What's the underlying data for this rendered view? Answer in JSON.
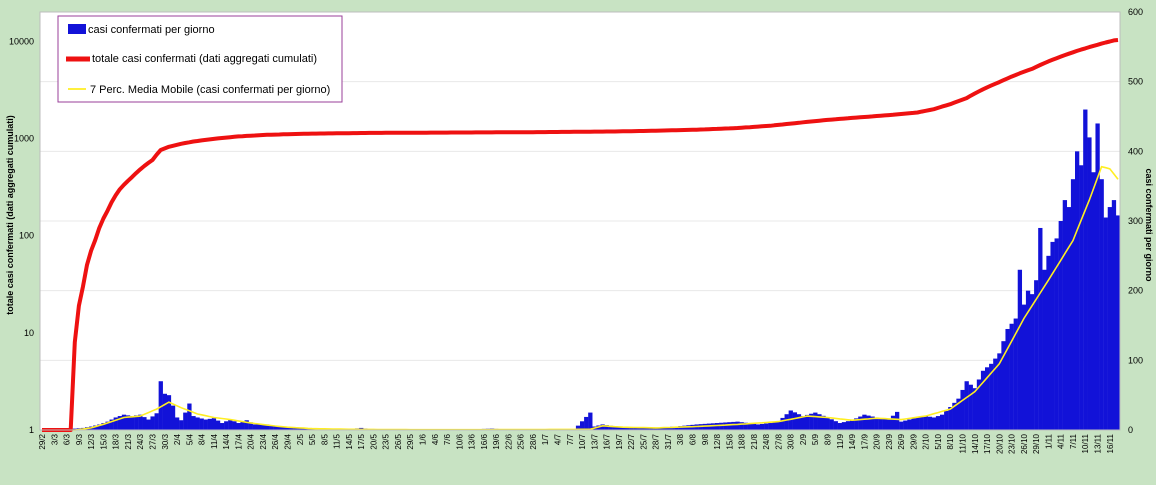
{
  "chart_data": {
    "type": "bar",
    "date_start": "29/2",
    "y_left": {
      "label": "totale casi confermati (dati aggregati cumulati)",
      "scale": "log",
      "range": [
        1,
        20000
      ],
      "ticks": [
        "1",
        "10",
        "100",
        "1000",
        "10000"
      ]
    },
    "y_right": {
      "label": "casi confermati per giorno",
      "range": [
        0,
        600
      ],
      "ticks": [
        "0",
        "100",
        "200",
        "300",
        "400",
        "500",
        "600"
      ]
    },
    "legend": {
      "placement": "top-left",
      "items": [
        {
          "name": "casi confermati per giorno",
          "color": "#1212d8",
          "kind": "bar"
        },
        {
          "name": "totale casi confermati (dati aggregati cumulati)",
          "color": "#ee1111",
          "kind": "line-thick"
        },
        {
          "name": "7 Perc. Media Mobile (casi confermati per giorno)",
          "color": "#ffee22",
          "kind": "line"
        }
      ]
    },
    "daily_keypoints": [
      [
        0,
        0
      ],
      [
        7,
        0
      ],
      [
        8,
        2
      ],
      [
        10,
        3
      ],
      [
        12,
        5
      ],
      [
        14,
        8
      ],
      [
        16,
        12
      ],
      [
        18,
        18
      ],
      [
        20,
        22
      ],
      [
        22,
        20
      ],
      [
        24,
        22
      ],
      [
        26,
        15
      ],
      [
        28,
        24
      ],
      [
        29,
        70
      ],
      [
        30,
        52
      ],
      [
        31,
        50
      ],
      [
        32,
        35
      ],
      [
        33,
        18
      ],
      [
        34,
        14
      ],
      [
        35,
        25
      ],
      [
        36,
        38
      ],
      [
        37,
        20
      ],
      [
        38,
        18
      ],
      [
        40,
        15
      ],
      [
        42,
        17
      ],
      [
        44,
        10
      ],
      [
        46,
        15
      ],
      [
        48,
        10
      ],
      [
        50,
        14
      ],
      [
        52,
        8
      ],
      [
        55,
        8
      ],
      [
        58,
        5
      ],
      [
        62,
        3
      ],
      [
        66,
        2
      ],
      [
        70,
        2
      ],
      [
        75,
        1
      ],
      [
        78,
        3
      ],
      [
        80,
        1
      ],
      [
        85,
        1
      ],
      [
        90,
        1
      ],
      [
        100,
        0
      ],
      [
        105,
        1
      ],
      [
        110,
        2
      ],
      [
        115,
        0
      ],
      [
        120,
        0
      ],
      [
        125,
        0
      ],
      [
        130,
        0
      ],
      [
        134,
        25
      ],
      [
        135,
        5
      ],
      [
        137,
        8
      ],
      [
        140,
        5
      ],
      [
        145,
        4
      ],
      [
        150,
        3
      ],
      [
        155,
        5
      ],
      [
        160,
        8
      ],
      [
        165,
        10
      ],
      [
        170,
        12
      ],
      [
        175,
        8
      ],
      [
        178,
        10
      ],
      [
        180,
        12
      ],
      [
        183,
        28
      ],
      [
        186,
        20
      ],
      [
        189,
        25
      ],
      [
        192,
        18
      ],
      [
        195,
        10
      ],
      [
        198,
        14
      ],
      [
        201,
        22
      ],
      [
        204,
        18
      ],
      [
        207,
        15
      ],
      [
        209,
        26
      ],
      [
        210,
        12
      ],
      [
        212,
        15
      ],
      [
        214,
        18
      ],
      [
        216,
        20
      ],
      [
        218,
        18
      ],
      [
        220,
        22
      ],
      [
        222,
        33
      ],
      [
        224,
        45
      ],
      [
        226,
        70
      ],
      [
        228,
        60
      ],
      [
        230,
        85
      ],
      [
        232,
        95
      ],
      [
        234,
        110
      ],
      [
        236,
        145
      ],
      [
        238,
        160
      ],
      [
        239,
        230
      ],
      [
        240,
        180
      ],
      [
        241,
        200
      ],
      [
        242,
        195
      ],
      [
        243,
        215
      ],
      [
        244,
        290
      ],
      [
        245,
        230
      ],
      [
        246,
        250
      ],
      [
        247,
        270
      ],
      [
        248,
        275
      ],
      [
        249,
        300
      ],
      [
        250,
        330
      ],
      [
        251,
        320
      ],
      [
        252,
        360
      ],
      [
        253,
        400
      ],
      [
        254,
        380
      ],
      [
        255,
        460
      ],
      [
        256,
        420
      ],
      [
        257,
        370
      ],
      [
        258,
        440
      ],
      [
        259,
        360
      ],
      [
        260,
        305
      ],
      [
        261,
        320
      ],
      [
        262,
        330
      ],
      [
        263,
        308
      ]
    ],
    "ma_keypoints": [
      [
        0,
        0
      ],
      [
        8,
        0
      ],
      [
        12,
        3
      ],
      [
        16,
        10
      ],
      [
        20,
        18
      ],
      [
        24,
        20
      ],
      [
        28,
        30
      ],
      [
        31,
        40
      ],
      [
        34,
        32
      ],
      [
        38,
        23
      ],
      [
        42,
        18
      ],
      [
        46,
        15
      ],
      [
        50,
        11
      ],
      [
        55,
        7
      ],
      [
        60,
        4
      ],
      [
        66,
        2
      ],
      [
        75,
        1
      ],
      [
        90,
        0.5
      ],
      [
        110,
        0.5
      ],
      [
        134,
        1
      ],
      [
        137,
        6
      ],
      [
        142,
        4
      ],
      [
        150,
        3
      ],
      [
        160,
        5
      ],
      [
        170,
        8
      ],
      [
        180,
        12
      ],
      [
        187,
        20
      ],
      [
        192,
        18
      ],
      [
        198,
        14
      ],
      [
        204,
        17
      ],
      [
        210,
        15
      ],
      [
        216,
        20
      ],
      [
        222,
        30
      ],
      [
        228,
        55
      ],
      [
        234,
        95
      ],
      [
        240,
        160
      ],
      [
        246,
        215
      ],
      [
        252,
        272
      ],
      [
        256,
        330
      ],
      [
        259,
        378
      ],
      [
        261,
        375
      ],
      [
        263,
        360
      ]
    ],
    "cumulative_keypoints": [
      [
        0,
        1
      ],
      [
        7,
        1
      ],
      [
        8,
        8
      ],
      [
        10,
        30
      ],
      [
        13,
        90
      ],
      [
        16,
        180
      ],
      [
        19,
        300
      ],
      [
        22,
        400
      ],
      [
        25,
        520
      ],
      [
        27,
        600
      ],
      [
        29,
        760
      ],
      [
        31,
        820
      ],
      [
        34,
        880
      ],
      [
        37,
        930
      ],
      [
        42,
        990
      ],
      [
        48,
        1050
      ],
      [
        55,
        1090
      ],
      [
        65,
        1120
      ],
      [
        80,
        1140
      ],
      [
        100,
        1150
      ],
      [
        120,
        1160
      ],
      [
        130,
        1170
      ],
      [
        140,
        1180
      ],
      [
        150,
        1200
      ],
      [
        160,
        1230
      ],
      [
        170,
        1280
      ],
      [
        178,
        1350
      ],
      [
        185,
        1450
      ],
      [
        192,
        1550
      ],
      [
        200,
        1650
      ],
      [
        208,
        1750
      ],
      [
        214,
        1850
      ],
      [
        218,
        2000
      ],
      [
        222,
        2250
      ],
      [
        226,
        2600
      ],
      [
        230,
        3200
      ],
      [
        234,
        3800
      ],
      [
        238,
        4500
      ],
      [
        242,
        5200
      ],
      [
        246,
        6200
      ],
      [
        250,
        7200
      ],
      [
        254,
        8200
      ],
      [
        258,
        9200
      ],
      [
        262,
        10200
      ],
      [
        263,
        10300
      ]
    ]
  }
}
